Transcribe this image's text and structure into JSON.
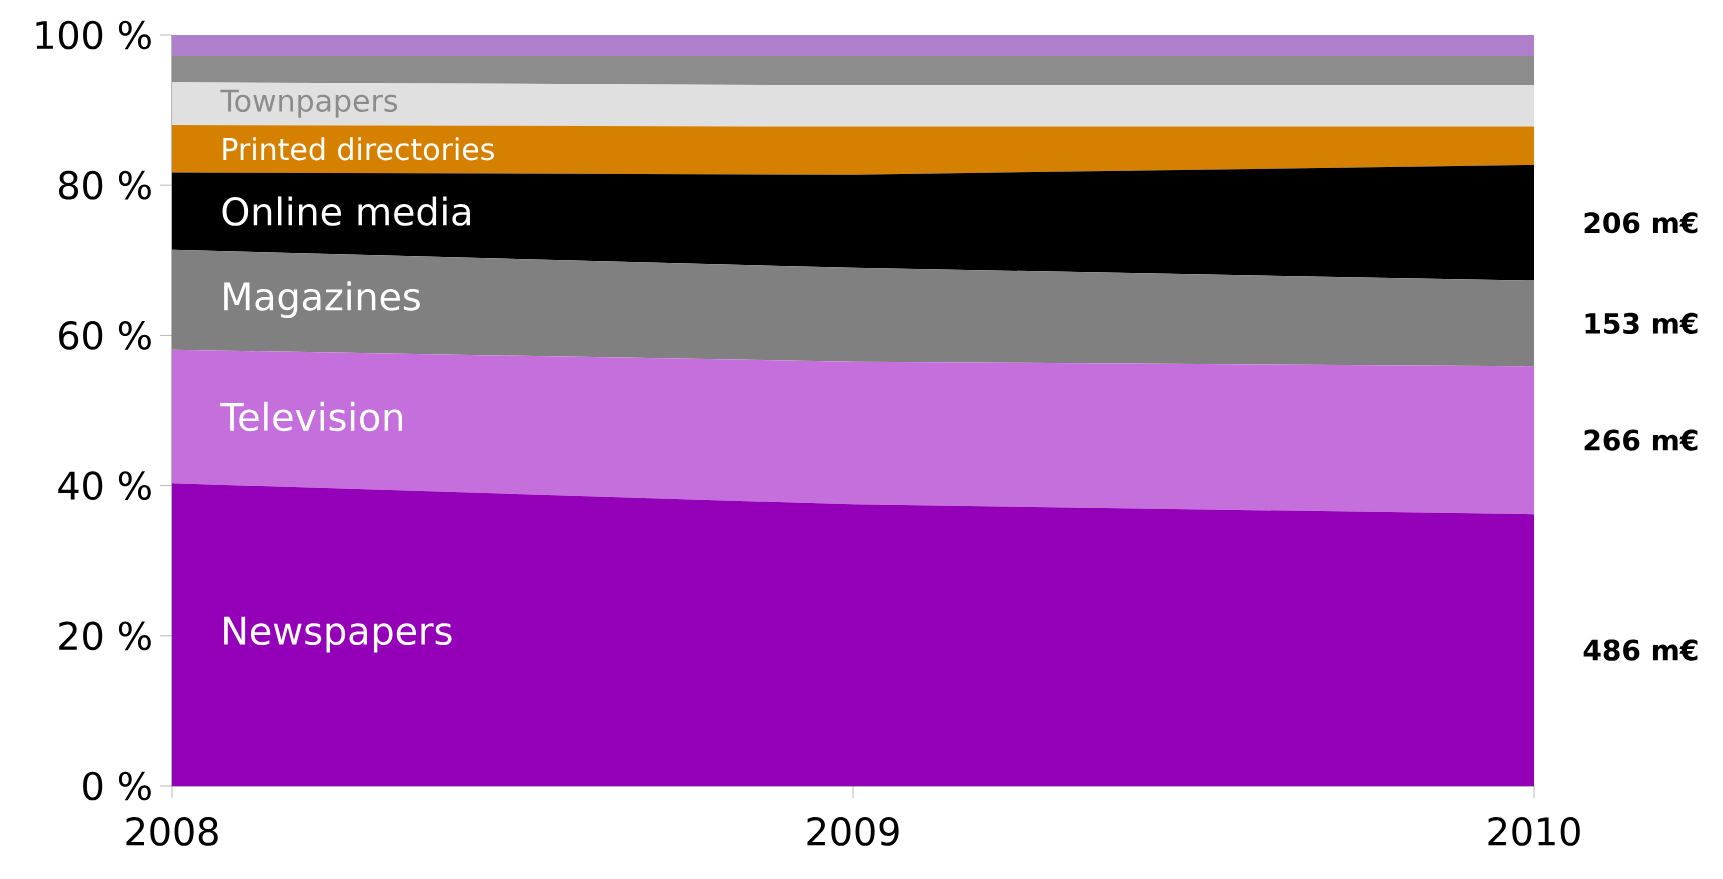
{
  "chart_data": {
    "type": "area",
    "stacked": true,
    "x": [
      2008,
      2009,
      2010
    ],
    "xlim": [
      2008,
      2010
    ],
    "xticks": [
      2008,
      2009,
      2010
    ],
    "ylim": [
      0,
      100
    ],
    "yticks": [
      {
        "value": 0,
        "label": "0 %"
      },
      {
        "value": 20,
        "label": "20 %"
      },
      {
        "value": 40,
        "label": "40 %"
      },
      {
        "value": 60,
        "label": "60 %"
      },
      {
        "value": 80,
        "label": "80 %"
      },
      {
        "value": 100,
        "label": "100 %"
      }
    ],
    "series": [
      {
        "name": "Newspapers",
        "color": "#9400b8",
        "values": [
          40.3,
          37.5,
          36.2
        ]
      },
      {
        "name": "Television",
        "color": "#c56fdc",
        "values": [
          17.8,
          19.0,
          19.7
        ]
      },
      {
        "name": "Magazines",
        "color": "#808080",
        "values": [
          13.3,
          12.5,
          11.4
        ]
      },
      {
        "name": "Online media",
        "color": "#000000",
        "values": [
          10.3,
          12.4,
          15.4
        ]
      },
      {
        "name": "Printed directories",
        "color": "#d68000",
        "values": [
          6.3,
          6.4,
          5.1
        ]
      },
      {
        "name": "Townpapers",
        "color": "#e0e0e0",
        "values": [
          5.7,
          5.5,
          5.5
        ]
      },
      {
        "color": "#8c8c8c",
        "values": [
          3.5,
          3.9,
          3.9
        ]
      },
      {
        "color": "#b07fcc",
        "values": [
          2.8,
          2.8,
          2.8
        ]
      }
    ],
    "annotations": [
      "486 m€",
      "266 m€",
      "153 m€",
      "206 m€"
    ]
  }
}
